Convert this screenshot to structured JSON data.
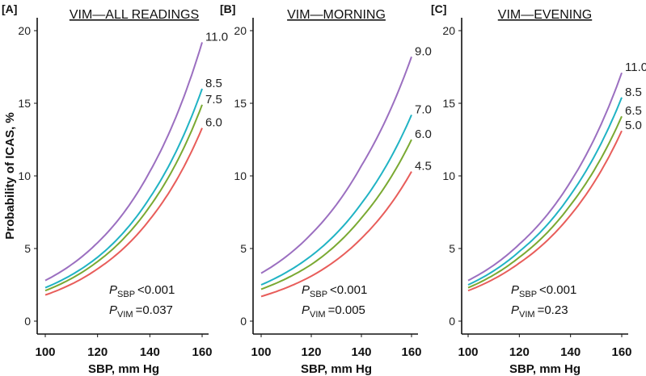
{
  "chart_data": {
    "ylabel": "Probability of ICAS, %",
    "panels": [
      {
        "type": "line",
        "letter": "[A]",
        "title": "VIM—ALL READINGS",
        "xlabel": "SBP, mm Hg",
        "xlim": [
          100,
          160
        ],
        "ylim": [
          0,
          20
        ],
        "xticks": [
          100,
          120,
          140,
          160
        ],
        "yticks": [
          0,
          5,
          10,
          15,
          20
        ],
        "x": [
          100,
          120,
          140,
          160
        ],
        "series": [
          {
            "name": "11.0",
            "color": "#9b6fc0",
            "values": [
              2.8,
              5.4,
              10.3,
              19.2
            ]
          },
          {
            "name": "8.5",
            "color": "#20b3c4",
            "values": [
              2.3,
              4.4,
              8.5,
              16.0
            ]
          },
          {
            "name": "7.5",
            "color": "#7aa932",
            "values": [
              2.1,
              4.1,
              7.9,
              14.9
            ]
          },
          {
            "name": "6.0",
            "color": "#e85d5a",
            "values": [
              1.8,
              3.6,
              7.0,
              13.3
            ]
          }
        ],
        "annotations": {
          "p_sbp_label": "P",
          "p_sbp_sub": "SBP",
          "p_sbp_value": "<0.001",
          "p_vim_label": "P",
          "p_vim_sub": "VIM",
          "p_vim_value": "=0.037"
        }
      },
      {
        "type": "line",
        "letter": "[B]",
        "title": "VIM—MORNING",
        "xlabel": "SBP, mm Hg",
        "xlim": [
          100,
          160
        ],
        "ylim": [
          0,
          20
        ],
        "xticks": [
          100,
          120,
          140,
          160
        ],
        "yticks": [
          0,
          5,
          10,
          15,
          20
        ],
        "x": [
          100,
          120,
          140,
          160
        ],
        "series": [
          {
            "name": "9.0",
            "color": "#9b6fc0",
            "values": [
              3.3,
              6.0,
              10.7,
              18.2
            ]
          },
          {
            "name": "7.0",
            "color": "#20b3c4",
            "values": [
              2.5,
              4.5,
              8.1,
              14.2
            ]
          },
          {
            "name": "6.0",
            "color": "#7aa932",
            "values": [
              2.2,
              3.9,
              7.1,
              12.5
            ]
          },
          {
            "name": "4.5",
            "color": "#e85d5a",
            "values": [
              1.7,
              3.1,
              5.7,
              10.3
            ]
          }
        ],
        "annotations": {
          "p_sbp_label": "P",
          "p_sbp_sub": "SBP",
          "p_sbp_value": "<0.001",
          "p_vim_label": "P",
          "p_vim_sub": "VIM",
          "p_vim_value": "=0.005"
        }
      },
      {
        "type": "line",
        "letter": "[C]",
        "title": "VIM—EVENING",
        "xlabel": "SBP, mm Hg",
        "xlim": [
          100,
          160
        ],
        "ylim": [
          0,
          20
        ],
        "xticks": [
          100,
          120,
          140,
          160
        ],
        "yticks": [
          0,
          5,
          10,
          15,
          20
        ],
        "x": [
          100,
          120,
          140,
          160
        ],
        "series": [
          {
            "name": "11.0",
            "color": "#9b6fc0",
            "values": [
              2.8,
              5.3,
              9.6,
              17.1
            ]
          },
          {
            "name": "8.5",
            "color": "#20b3c4",
            "values": [
              2.5,
              4.8,
              8.7,
              15.4
            ]
          },
          {
            "name": "6.5",
            "color": "#7aa932",
            "values": [
              2.3,
              4.4,
              8.0,
              14.1
            ]
          },
          {
            "name": "5.0",
            "color": "#e85d5a",
            "values": [
              2.1,
              4.0,
              7.3,
              13.1
            ]
          }
        ],
        "annotations": {
          "p_sbp_label": "P",
          "p_sbp_sub": "SBP",
          "p_sbp_value": "<0.001",
          "p_vim_label": "P",
          "p_vim_sub": "VIM",
          "p_vim_value": "=0.23"
        }
      }
    ]
  }
}
